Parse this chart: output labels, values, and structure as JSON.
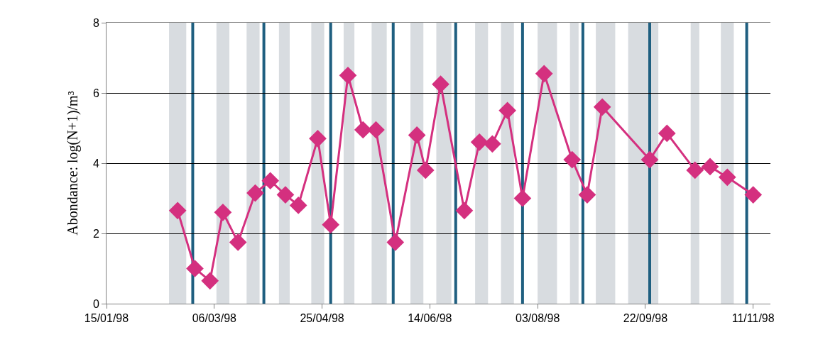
{
  "chart_data": {
    "type": "line",
    "ylabel": "Abondance: log(N+1)/m³",
    "x": [
      "1998-02-17",
      "1998-02-25",
      "1998-03-04",
      "1998-03-10",
      "1998-03-17",
      "1998-03-25",
      "1998-04-01",
      "1998-04-08",
      "1998-04-14",
      "1998-04-23",
      "1998-04-29",
      "1998-05-07",
      "1998-05-14",
      "1998-05-20",
      "1998-05-29",
      "1998-06-08",
      "1998-06-12",
      "1998-06-19",
      "1998-06-30",
      "1998-07-07",
      "1998-07-13",
      "1998-07-20",
      "1998-07-27",
      "1998-08-06",
      "1998-08-19",
      "1998-08-26",
      "1998-09-02",
      "1998-09-24",
      "1998-10-02",
      "1998-10-15",
      "1998-10-22",
      "1998-10-30",
      "1998-11-11"
    ],
    "series": [
      {
        "color": "#d4307f",
        "values": [
          2.65,
          1.0,
          0.65,
          2.6,
          1.75,
          3.15,
          3.5,
          3.1,
          2.8,
          4.7,
          2.25,
          6.5,
          4.95,
          4.95,
          1.75,
          4.8,
          3.8,
          6.25,
          2.65,
          4.6,
          4.55,
          5.5,
          3.0,
          6.55,
          4.1,
          3.1,
          5.6,
          4.1,
          4.85,
          3.8,
          3.9,
          3.6,
          3.1
        ]
      }
    ],
    "marker": "diamond",
    "line_style": "solid",
    "grid": "y",
    "xlim": [
      "1998-01-15",
      "1998-11-19"
    ],
    "xticks": [
      {
        "value": "1998-01-15",
        "label": "15/01/98"
      },
      {
        "value": "1998-03-06",
        "label": "06/03/98"
      },
      {
        "value": "1998-04-25",
        "label": "25/04/98"
      },
      {
        "value": "1998-06-14",
        "label": "14/06/98"
      },
      {
        "value": "1998-08-03",
        "label": "03/08/98"
      },
      {
        "value": "1998-09-22",
        "label": "22/09/98"
      },
      {
        "value": "1998-11-11",
        "label": "11/11/98"
      }
    ],
    "ylim": [
      0,
      8
    ],
    "yticks": [
      0,
      2,
      4,
      6,
      8
    ],
    "bands": [
      {
        "axis": "x",
        "from": "1998-02-13",
        "to": "1998-02-21",
        "color": "#d8dce0"
      },
      {
        "axis": "x",
        "from": "1998-03-07",
        "to": "1998-03-13",
        "color": "#d8dce0"
      },
      {
        "axis": "x",
        "from": "1998-03-21",
        "to": "1998-03-27",
        "color": "#d8dce0"
      },
      {
        "axis": "x",
        "from": "1998-04-05",
        "to": "1998-04-10",
        "color": "#d8dce0"
      },
      {
        "axis": "x",
        "from": "1998-04-20",
        "to": "1998-04-26",
        "color": "#d8dce0"
      },
      {
        "axis": "x",
        "from": "1998-05-05",
        "to": "1998-05-10",
        "color": "#d8dce0"
      },
      {
        "axis": "x",
        "from": "1998-05-18",
        "to": "1998-05-25",
        "color": "#d8dce0"
      },
      {
        "axis": "x",
        "from": "1998-06-05",
        "to": "1998-06-11",
        "color": "#d8dce0"
      },
      {
        "axis": "x",
        "from": "1998-06-17",
        "to": "1998-06-24",
        "color": "#d8dce0"
      },
      {
        "axis": "x",
        "from": "1998-07-05",
        "to": "1998-07-11",
        "color": "#d8dce0"
      },
      {
        "axis": "x",
        "from": "1998-07-17",
        "to": "1998-07-23",
        "color": "#d8dce0"
      },
      {
        "axis": "x",
        "from": "1998-08-03",
        "to": "1998-08-12",
        "color": "#d8dce0"
      },
      {
        "axis": "x",
        "from": "1998-08-18",
        "to": "1998-08-22",
        "color": "#d8dce0"
      },
      {
        "axis": "x",
        "from": "1998-08-30",
        "to": "1998-09-08",
        "color": "#d8dce0"
      },
      {
        "axis": "x",
        "from": "1998-09-14",
        "to": "1998-09-28",
        "color": "#d8dce0"
      },
      {
        "axis": "x",
        "from": "1998-10-13",
        "to": "1998-10-17",
        "color": "#d8dce0"
      },
      {
        "axis": "x",
        "from": "1998-10-27",
        "to": "1998-11-02",
        "color": "#d8dce0"
      }
    ],
    "ref_lines": [
      {
        "axis": "x",
        "value": "1998-02-24",
        "color": "#1f5f80",
        "line_style": "solid"
      },
      {
        "axis": "x",
        "value": "1998-03-29",
        "color": "#1f5f80",
        "line_style": "solid"
      },
      {
        "axis": "x",
        "value": "1998-04-29",
        "color": "#1f5f80",
        "line_style": "solid"
      },
      {
        "axis": "x",
        "value": "1998-05-28",
        "color": "#1f5f80",
        "line_style": "solid"
      },
      {
        "axis": "x",
        "value": "1998-06-26",
        "color": "#1f5f80",
        "line_style": "solid"
      },
      {
        "axis": "x",
        "value": "1998-07-27",
        "color": "#1f5f80",
        "line_style": "solid"
      },
      {
        "axis": "x",
        "value": "1998-08-24",
        "color": "#1f5f80",
        "line_style": "solid"
      },
      {
        "axis": "x",
        "value": "1998-09-24",
        "color": "#1f5f80",
        "line_style": "solid"
      },
      {
        "axis": "x",
        "value": "1998-11-08",
        "color": "#1f5f80",
        "line_style": "solid"
      }
    ]
  }
}
